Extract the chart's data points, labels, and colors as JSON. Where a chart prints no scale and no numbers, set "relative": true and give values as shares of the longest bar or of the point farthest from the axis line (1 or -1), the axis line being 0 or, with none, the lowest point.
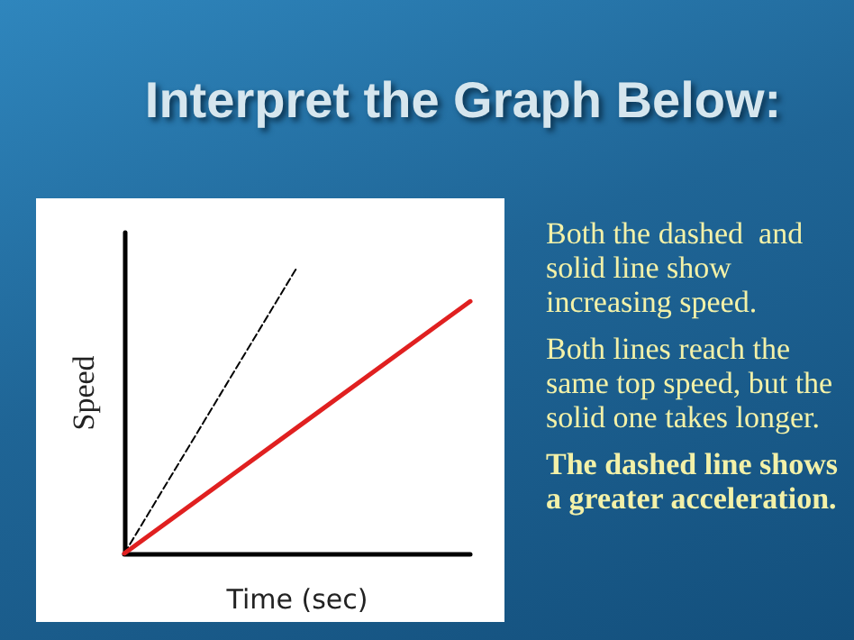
{
  "chart_data": {
    "type": "line",
    "title": "Interpret the Graph Below:",
    "xlabel": "Time (sec)",
    "ylabel": "Speed",
    "relative": true,
    "grid": false,
    "marker": "none",
    "categories": [
      null,
      null,
      null
    ],
    "series": [
      {
        "color": "#000000",
        "line_style": "dashed",
        "values": [
          0,
          1,
          null
        ]
      },
      {
        "color": "#e02020",
        "line_style": "solid",
        "values": [
          0,
          0.44,
          0.88
        ]
      }
    ],
    "annotations": [
      "Both the dashed  and solid line show increasing speed.",
      "Both lines reach the same top speed, but the solid one takes longer.",
      "The dashed line shows a greater acceleration."
    ]
  }
}
